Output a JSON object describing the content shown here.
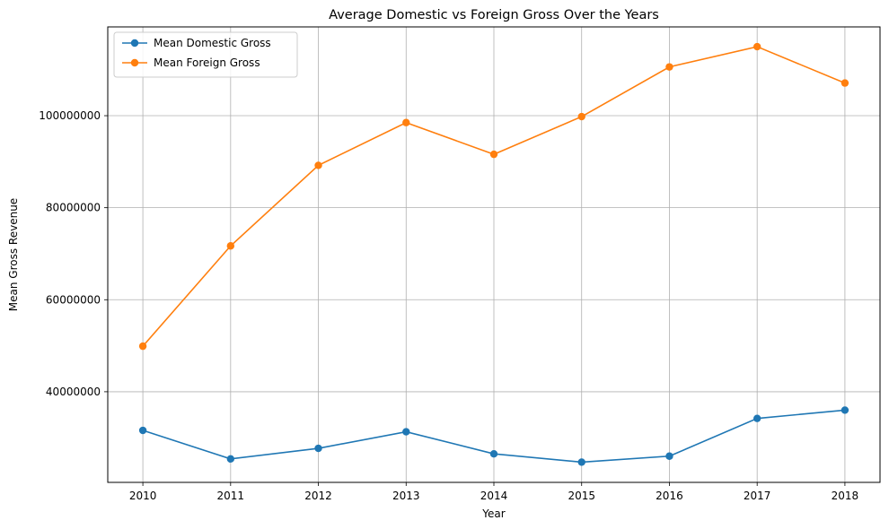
{
  "chart_data": {
    "type": "line",
    "title": "Average Domestic vs Foreign Gross Over the Years",
    "xlabel": "Year",
    "ylabel": "Mean Gross Revenue",
    "x": [
      2010,
      2011,
      2012,
      2013,
      2014,
      2015,
      2016,
      2017,
      2018
    ],
    "x_tick_labels": [
      "2010",
      "2011",
      "2012",
      "2013",
      "2014",
      "2015",
      "2016",
      "2017",
      "2018"
    ],
    "xlim": [
      2009.6,
      2018.4
    ],
    "ylim": [
      20300000,
      119300000
    ],
    "y_ticks": [
      40000000,
      60000000,
      80000000,
      100000000
    ],
    "y_tick_labels": [
      "40000000",
      "60000000",
      "80000000",
      "100000000"
    ],
    "grid": true,
    "legend_position": "top-left",
    "series": [
      {
        "name": "Mean Domestic Gross",
        "color": "#1f77b4",
        "values": [
          31600000,
          25400000,
          27700000,
          31300000,
          26500000,
          24700000,
          26000000,
          34200000,
          36000000
        ]
      },
      {
        "name": "Mean Foreign Gross",
        "color": "#ff7f0e",
        "values": [
          49900000,
          71700000,
          89200000,
          98500000,
          91600000,
          99800000,
          110600000,
          115000000,
          107100000
        ]
      }
    ]
  }
}
